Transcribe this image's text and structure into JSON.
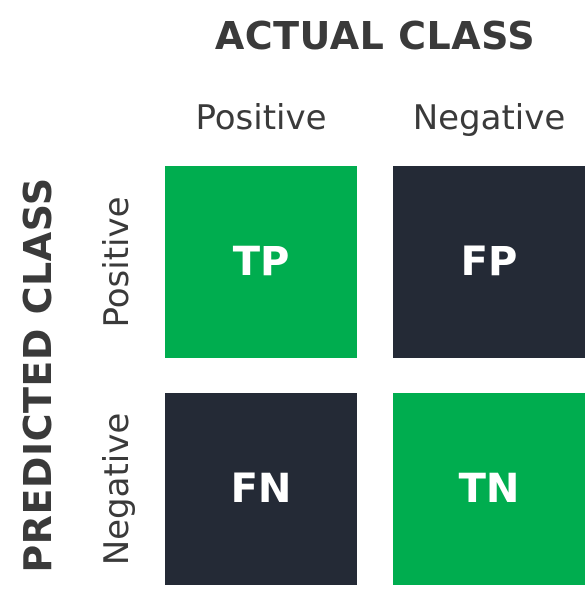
{
  "actual": {
    "title": "ACTUAL CLASS",
    "columns": [
      "Positive",
      "Negative"
    ]
  },
  "predicted": {
    "title": "PREDICTED CLASS",
    "rows": [
      "Positive",
      "Negative"
    ]
  },
  "cells": {
    "tp": "TP",
    "fp": "FP",
    "fn": "FN",
    "tn": "TN"
  },
  "colors": {
    "correct": "#00ad4f",
    "incorrect": "#242a36",
    "text": "#3a3a3a"
  }
}
